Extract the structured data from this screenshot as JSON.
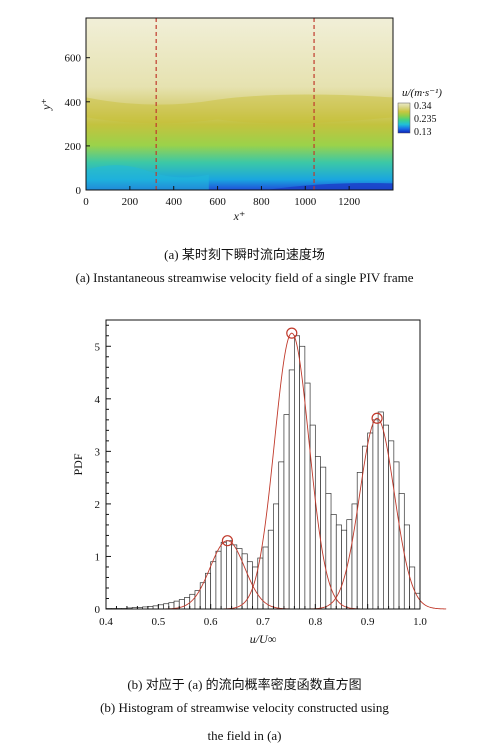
{
  "captions": {
    "a_cn": "(a) 某时刻下瞬时流向速度场",
    "a_en": "(a) Instantaneous streamwise velocity field of a single PIV frame",
    "b_cn": "(b) 对应于 (a) 的流向概率密度函数直方图",
    "b_en_line1": "(b) Histogram of streamwise velocity constructed using",
    "b_en_line2": "the field in (a)"
  },
  "chart_data": [
    {
      "type": "heatmap",
      "title": "",
      "xlabel": "x⁺",
      "ylabel": "y⁺",
      "xlim": [
        0,
        1400
      ],
      "ylim": [
        0,
        780
      ],
      "x_ticks": [
        "0",
        "200",
        "400",
        "600",
        "800",
        "1000",
        "1200"
      ],
      "y_ticks": [
        "0",
        "200",
        "400",
        "600"
      ],
      "colorbar": {
        "label": "u/(m·s⁻¹)",
        "ticks": [
          "0.34",
          "0.235",
          "0.13"
        ],
        "range": [
          0.13,
          0.34
        ],
        "colors": [
          "#0a1fb8",
          "#1a6ee8",
          "#1fc0d8",
          "#3fd08a",
          "#8ccf4a",
          "#c9c640",
          "#d8d68a",
          "#ecebc8"
        ]
      },
      "dashed_lines_x": [
        320,
        1040
      ],
      "dashed_line_color": "#c0392b"
    },
    {
      "type": "bar",
      "title": "",
      "xlabel": "u/U∞",
      "ylabel": "PDF",
      "xlim": [
        0.4,
        1.0
      ],
      "ylim": [
        0,
        5.5
      ],
      "x_ticks": [
        "0.4",
        "0.5",
        "0.6",
        "0.7",
        "0.8",
        "0.9",
        "1.0"
      ],
      "y_ticks": [
        "0",
        "1",
        "2",
        "3",
        "4",
        "5"
      ],
      "bin_width": 0.01,
      "bin_centers": [
        0.405,
        0.415,
        0.425,
        0.435,
        0.445,
        0.455,
        0.465,
        0.475,
        0.485,
        0.495,
        0.505,
        0.515,
        0.525,
        0.535,
        0.545,
        0.555,
        0.565,
        0.575,
        0.585,
        0.595,
        0.605,
        0.615,
        0.625,
        0.635,
        0.645,
        0.655,
        0.665,
        0.675,
        0.685,
        0.695,
        0.705,
        0.715,
        0.725,
        0.735,
        0.745,
        0.755,
        0.765,
        0.775,
        0.785,
        0.795,
        0.805,
        0.815,
        0.825,
        0.835,
        0.845,
        0.855,
        0.865,
        0.875,
        0.885,
        0.895,
        0.905,
        0.915,
        0.925,
        0.935,
        0.945,
        0.955,
        0.965,
        0.975,
        0.985,
        0.995
      ],
      "values": [
        0.01,
        0.01,
        0.01,
        0.01,
        0.02,
        0.03,
        0.03,
        0.04,
        0.05,
        0.06,
        0.08,
        0.1,
        0.12,
        0.15,
        0.18,
        0.22,
        0.28,
        0.35,
        0.5,
        0.68,
        0.9,
        1.1,
        1.27,
        1.3,
        1.22,
        1.15,
        1.05,
        0.9,
        0.8,
        0.97,
        1.18,
        1.5,
        2.0,
        2.8,
        3.7,
        4.55,
        5.2,
        5.0,
        4.3,
        3.5,
        2.9,
        2.7,
        2.2,
        1.8,
        1.6,
        1.5,
        1.7,
        2.0,
        2.6,
        3.1,
        3.35,
        3.6,
        3.75,
        3.5,
        3.2,
        2.8,
        2.2,
        1.6,
        0.8,
        0.3
      ],
      "fit_components": [
        {
          "mean": 0.632,
          "sd": 0.033,
          "peak": 1.3
        },
        {
          "mean": 0.755,
          "sd": 0.033,
          "peak": 5.25
        },
        {
          "mean": 0.918,
          "sd": 0.033,
          "peak": 3.63
        }
      ],
      "peak_markers": [
        {
          "x": 0.632,
          "y": 1.3
        },
        {
          "x": 0.755,
          "y": 5.25
        },
        {
          "x": 0.918,
          "y": 3.63
        }
      ],
      "fit_color": "#c0392b"
    }
  ]
}
